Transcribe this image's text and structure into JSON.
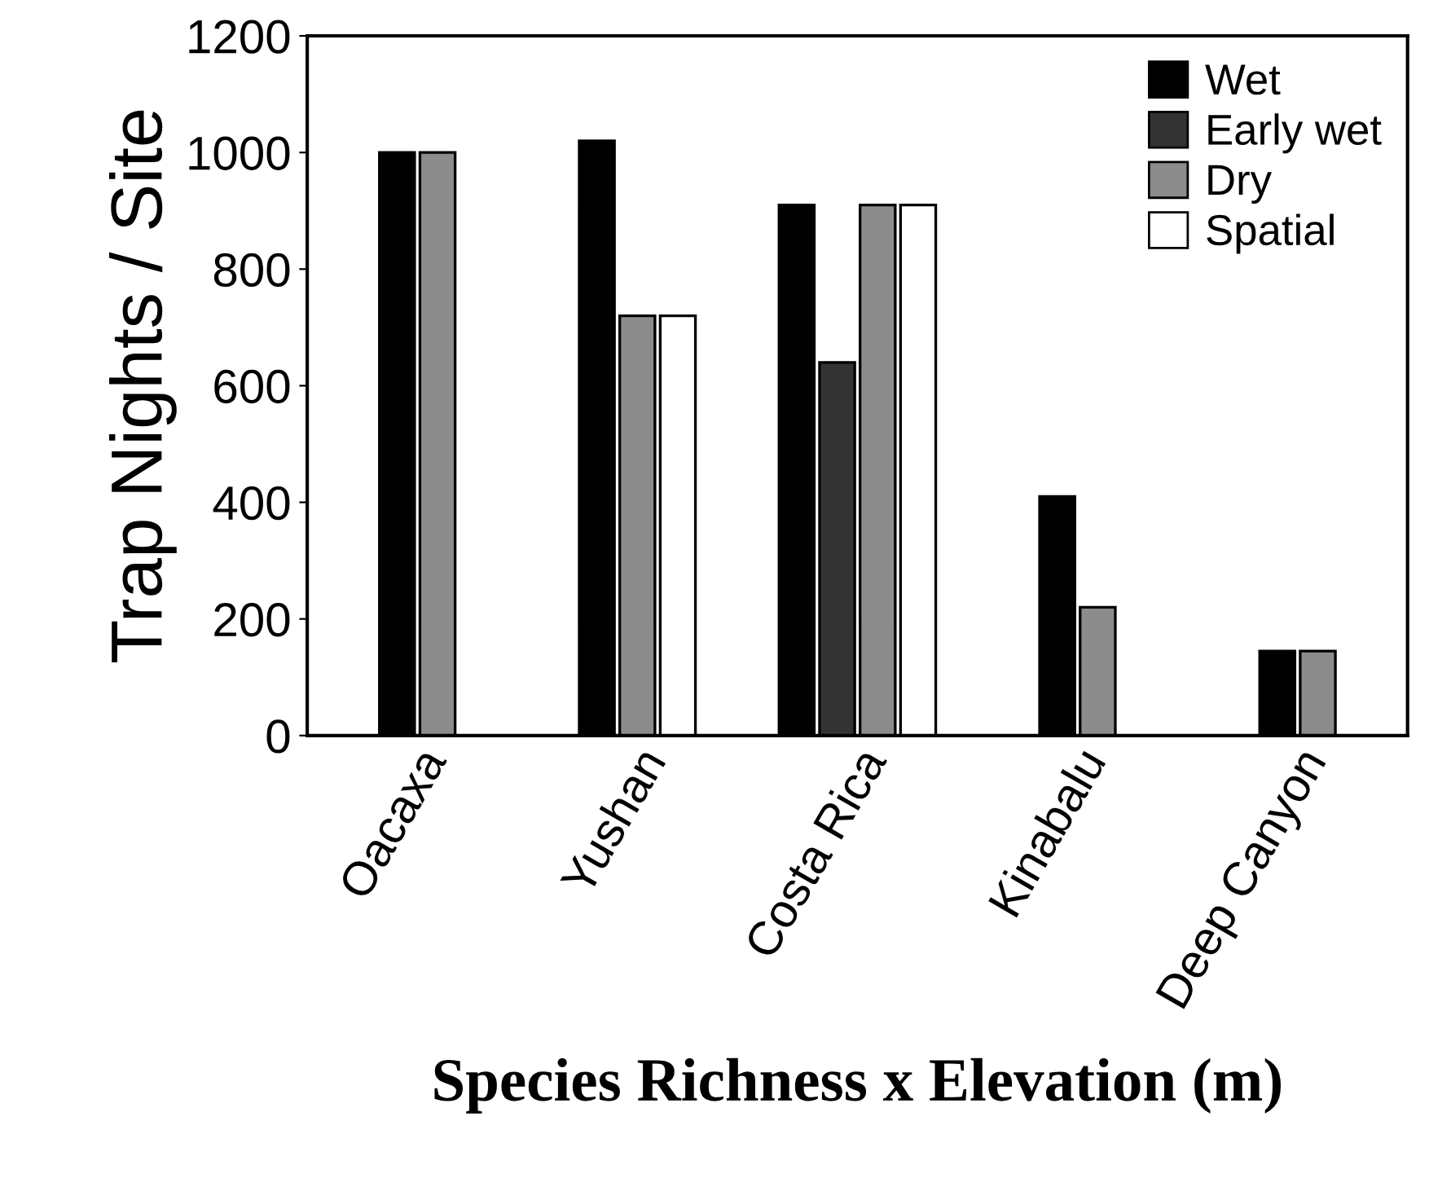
{
  "chart_data": {
    "type": "bar",
    "xlabel": "Species Richness x Elevation (m)",
    "ylabel": "Trap Nights / Site",
    "categories": [
      "Oacaxa",
      "Yushan",
      "Costa Rica",
      "Kinabalu",
      "Deep Canyon"
    ],
    "series": [
      {
        "name": "Wet",
        "color": "#000000",
        "values": [
          1000,
          1020,
          910,
          410,
          145
        ]
      },
      {
        "name": "Early wet",
        "color": "#333333",
        "values": [
          null,
          null,
          640,
          null,
          null
        ]
      },
      {
        "name": "Dry",
        "color": "#8c8c8c",
        "values": [
          1000,
          720,
          910,
          220,
          145
        ]
      },
      {
        "name": "Spatial",
        "color": "#ffffff",
        "values": [
          null,
          720,
          910,
          null,
          null
        ]
      }
    ],
    "ylim": [
      0,
      1200
    ],
    "yticks": [
      0,
      200,
      400,
      600,
      800,
      1000,
      1200
    ],
    "grid": false,
    "legend": "top right"
  }
}
